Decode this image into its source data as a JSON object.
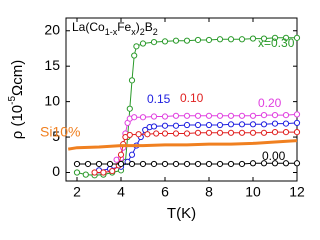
{
  "chart_data": {
    "type": "scatter",
    "title_parts": [
      "La(Co",
      "1-x",
      "Fe",
      "x",
      ")",
      "2",
      "B",
      "2"
    ],
    "x_label": "T(K)",
    "y_label_parts": [
      "ρ (10",
      "-5",
      "Ωcm)"
    ],
    "xlim": [
      1.5,
      12
    ],
    "ylim": [
      -1.2,
      21.8
    ],
    "xticks": [
      2,
      4,
      6,
      8,
      10,
      12
    ],
    "yticks": [
      0,
      5,
      10,
      15,
      20
    ],
    "series": [
      {
        "name": "x=0.30",
        "color": "#2a9a2a",
        "style": "markers",
        "x": [
          2,
          2.4,
          2.8,
          3.2,
          3.6,
          4.0,
          4.2,
          4.3,
          4.4,
          4.5,
          4.6,
          4.7,
          5,
          5.5,
          6,
          6.5,
          7,
          7.5,
          8,
          8.5,
          9,
          9.5,
          10,
          10.5,
          11,
          11.5,
          12
        ],
        "values": [
          0,
          -0.3,
          -0.4,
          -0.3,
          0,
          0.3,
          1.5,
          5,
          9,
          13,
          16.5,
          17.8,
          18.2,
          18.4,
          18.5,
          18.6,
          18.6,
          18.7,
          18.7,
          18.8,
          18.8,
          18.8,
          18.9,
          18.9,
          19,
          19,
          19
        ]
      },
      {
        "name": "0.20",
        "color": "#e040e0",
        "style": "markers",
        "x": [
          3.8,
          4.0,
          4.1,
          4.2,
          4.3,
          4.4,
          4.6,
          5,
          5.5,
          6,
          6.5,
          7,
          7.5,
          8,
          8.5,
          9,
          9.5,
          10,
          10.5,
          11,
          11.5,
          12
        ],
        "values": [
          1.8,
          2,
          3.5,
          5.5,
          7,
          7.6,
          7.8,
          7.8,
          7.9,
          7.9,
          8,
          8,
          8,
          8,
          8,
          8,
          8,
          8,
          8.1,
          8.1,
          8.1,
          8.2
        ]
      },
      {
        "name": "0.15",
        "color": "#2020e0",
        "style": "markers",
        "x": [
          3,
          3.5,
          4,
          4.3,
          4.5,
          4.7,
          4.9,
          5.1,
          5.3,
          5.5,
          6,
          6.5,
          7,
          7.5,
          8,
          8.5,
          9,
          9.5,
          10,
          10.5,
          11,
          11.5,
          12
        ],
        "values": [
          0.3,
          0.5,
          0.8,
          1.5,
          2.5,
          3.8,
          5,
          6,
          6.4,
          6.5,
          6.6,
          6.6,
          6.7,
          6.7,
          6.7,
          6.7,
          6.8,
          6.8,
          6.8,
          6.8,
          6.9,
          6.9,
          7
        ]
      },
      {
        "name": "0.10",
        "color": "#e02020",
        "style": "markers",
        "x": [
          2.8,
          3.2,
          3.6,
          3.9,
          4.0,
          4.1,
          4.2,
          4.4,
          4.8,
          5.2,
          5.6,
          6,
          6.5,
          7,
          7.5,
          8,
          8.5,
          9,
          9.5,
          10,
          10.5,
          11,
          11.5,
          12
        ],
        "values": [
          0,
          0,
          0.2,
          1,
          2.5,
          4,
          5,
          5.3,
          5.4,
          5.4,
          5.5,
          5.5,
          5.5,
          5.5,
          5.6,
          5.6,
          5.6,
          5.6,
          5.6,
          5.6,
          5.6,
          5.7,
          5.7,
          5.7
        ]
      },
      {
        "name": "0.00",
        "color": "#000000",
        "style": "markers",
        "x": [
          2,
          2.5,
          3,
          3.5,
          4,
          4.5,
          5,
          5.5,
          6,
          6.5,
          7,
          7.5,
          8,
          8.5,
          9,
          9.5,
          10,
          10.5,
          11,
          11.5,
          12
        ],
        "values": [
          1.2,
          1.2,
          1.2,
          1.2,
          1.2,
          1.2,
          1.2,
          1.2,
          1.2,
          1.2,
          1.2,
          1.2,
          1.2,
          1.2,
          1.2,
          1.2,
          1.3,
          1.3,
          1.3,
          1.3,
          1.3
        ]
      },
      {
        "name": "Si10%",
        "color": "#f08020",
        "style": "line",
        "x": [
          1.6,
          2,
          3,
          4,
          5,
          6,
          7,
          8,
          9,
          10,
          11,
          12
        ],
        "values": [
          3.3,
          3.5,
          3.6,
          3.8,
          3.8,
          3.9,
          3.9,
          4.0,
          4.0,
          4.1,
          4.3,
          4.5
        ]
      }
    ]
  }
}
